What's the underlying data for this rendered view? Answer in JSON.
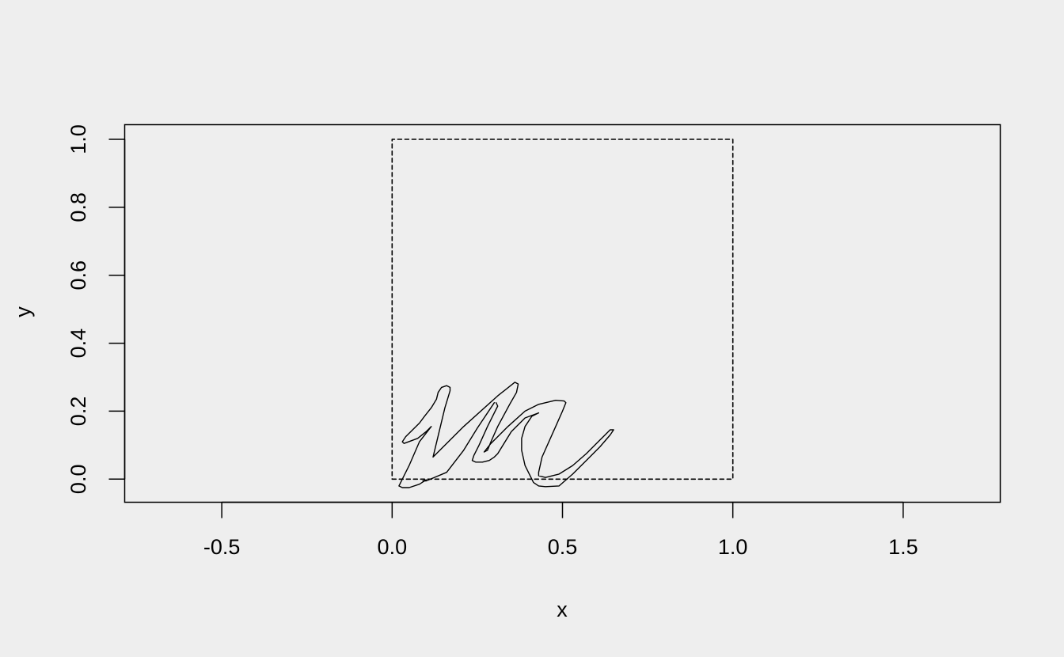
{
  "chart_data": {
    "type": "line",
    "title": "",
    "xlabel": "x",
    "ylabel": "y",
    "xlim": [
      -0.785,
      1.785
    ],
    "ylim": [
      -0.068,
      1.043
    ],
    "x_ticks": [
      -0.5,
      0.0,
      0.5,
      1.0,
      1.5
    ],
    "x_tick_labels": [
      "-0.5",
      "0.0",
      "0.5",
      "1.0",
      "1.5"
    ],
    "y_ticks": [
      0.0,
      0.2,
      0.4,
      0.6,
      0.8,
      1.0
    ],
    "y_tick_labels": [
      "0.0",
      "0.2",
      "0.4",
      "0.6",
      "0.8",
      "1.0"
    ],
    "grid": false,
    "colors": {
      "background": "#eeeeee",
      "ink": "#000000"
    },
    "series": [
      {
        "style": "dashed",
        "x": [
          0,
          1,
          1,
          0,
          0
        ],
        "y": [
          0,
          0,
          1,
          1,
          0
        ]
      },
      {
        "style": "solid",
        "x": [
          0.3,
          0.25,
          0.21,
          0.16,
          0.1,
          0.09,
          0.1,
          0.08,
          0.05,
          0.03,
          0.02,
          0.05,
          0.08,
          0.115,
          0.11,
          0.1,
          0.075,
          0.035,
          0.03,
          0.04,
          0.08,
          0.095,
          0.115,
          0.13,
          0.135,
          0.145,
          0.16,
          0.17,
          0.17,
          0.155,
          0.12,
          0.21,
          0.31,
          0.36,
          0.37,
          0.365,
          0.345,
          0.31,
          0.29,
          0.28,
          0.27,
          0.29,
          0.34,
          0.39,
          0.43,
          0.48,
          0.505,
          0.51,
          0.5,
          0.48,
          0.44,
          0.43,
          0.43,
          0.45,
          0.49,
          0.53,
          0.57,
          0.61,
          0.64,
          0.65,
          0.64,
          0.61,
          0.57,
          0.53,
          0.49,
          0.45,
          0.43,
          0.415,
          0.39,
          0.38,
          0.38,
          0.39,
          0.41,
          0.43,
          0.39,
          0.35,
          0.31,
          0.3,
          0.285,
          0.265,
          0.245,
          0.235,
          0.24,
          0.255,
          0.28,
          0.3,
          0.31,
          0.305
        ],
        "y": [
          0.225,
          0.15,
          0.085,
          0.02,
          -0.005,
          -0.005,
          -0.002,
          -0.015,
          -0.025,
          -0.025,
          -0.02,
          0.04,
          0.11,
          0.155,
          0.15,
          0.14,
          0.12,
          0.105,
          0.11,
          0.125,
          0.165,
          0.185,
          0.21,
          0.235,
          0.255,
          0.27,
          0.275,
          0.27,
          0.26,
          0.21,
          0.065,
          0.155,
          0.245,
          0.285,
          0.28,
          0.255,
          0.22,
          0.155,
          0.11,
          0.085,
          0.08,
          0.105,
          0.155,
          0.2,
          0.22,
          0.232,
          0.23,
          0.225,
          0.2,
          0.155,
          0.065,
          0.02,
          0.01,
          0.005,
          0.015,
          0.04,
          0.075,
          0.115,
          0.145,
          0.145,
          0.13,
          0.095,
          0.055,
          0.015,
          -0.02,
          -0.022,
          -0.02,
          -0.01,
          0.04,
          0.085,
          0.12,
          0.155,
          0.185,
          0.195,
          0.18,
          0.14,
          0.075,
          0.065,
          0.055,
          0.05,
          0.05,
          0.055,
          0.07,
          0.1,
          0.155,
          0.195,
          0.215,
          0.225
        ]
      }
    ]
  }
}
